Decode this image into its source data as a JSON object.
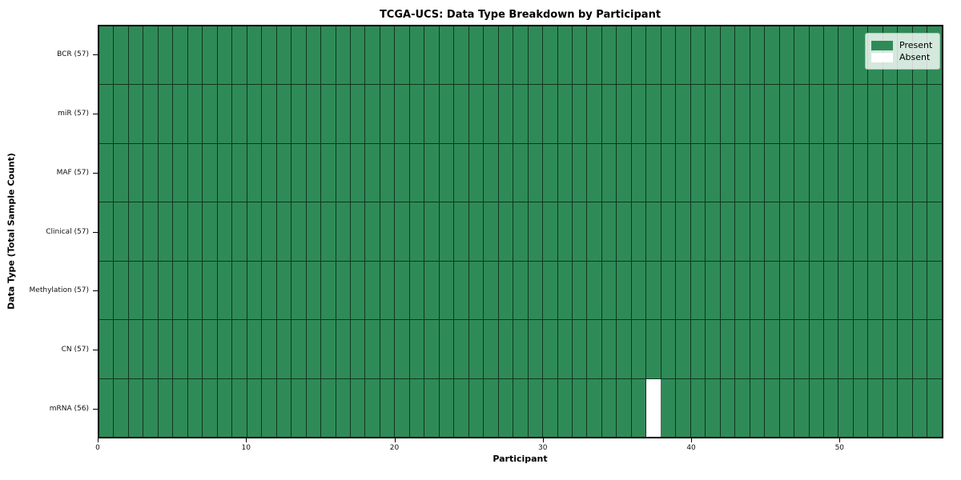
{
  "chart_data": {
    "type": "heatmap",
    "title": "TCGA-UCS: Data Type Breakdown by Participant",
    "xlabel": "Participant",
    "ylabel": "Data Type (Total Sample Count)",
    "n_participants": 57,
    "x_range": [
      0,
      57
    ],
    "x_ticks": [
      0,
      10,
      20,
      30,
      40,
      50
    ],
    "legend_position": "upper right",
    "legend": [
      {
        "label": "Present",
        "color": "#2e8b57"
      },
      {
        "label": "Absent",
        "color": "#ffffff"
      }
    ],
    "colors": {
      "present": "#2e8b57",
      "absent": "#ffffff",
      "cell_edge": "rgba(0,0,0,0.62)",
      "frame": "#000000"
    },
    "rows": [
      {
        "data_type": "BCR",
        "label": "BCR (57)",
        "total_samples": 57,
        "present_count": 57,
        "absent_participants": []
      },
      {
        "data_type": "miR",
        "label": "miR (57)",
        "total_samples": 57,
        "present_count": 57,
        "absent_participants": []
      },
      {
        "data_type": "MAF",
        "label": "MAF (57)",
        "total_samples": 57,
        "present_count": 57,
        "absent_participants": []
      },
      {
        "data_type": "Clinical",
        "label": "Clinical (57)",
        "total_samples": 57,
        "present_count": 57,
        "absent_participants": []
      },
      {
        "data_type": "Methylation",
        "label": "Methylation (57)",
        "total_samples": 57,
        "present_count": 57,
        "absent_participants": []
      },
      {
        "data_type": "CN",
        "label": "CN (57)",
        "total_samples": 57,
        "present_count": 57,
        "absent_participants": []
      },
      {
        "data_type": "mRNA",
        "label": "mRNA (56)",
        "total_samples": 56,
        "present_count": 56,
        "absent_participants": [
          37
        ]
      }
    ]
  }
}
